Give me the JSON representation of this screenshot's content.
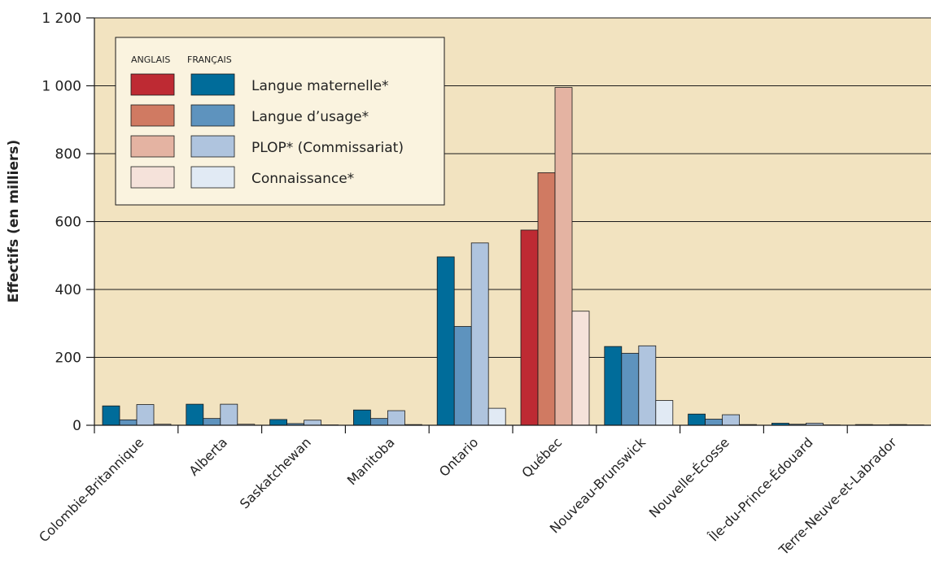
{
  "chart_data": {
    "type": "bar",
    "ylabel": "Effectifs (en milliers)",
    "ylim": [
      0,
      1200
    ],
    "yticks": [
      0,
      200,
      400,
      600,
      800,
      1000,
      1200
    ],
    "ytick_labels": [
      "0",
      "200",
      "400",
      "600",
      "800",
      "1 000",
      "1 200"
    ],
    "grid": true,
    "legend_position": "top-left",
    "legend_group_headers": [
      "ANGLAIS",
      "FRANÇAIS"
    ],
    "categories": [
      "Colombie-Britannique",
      "Alberta",
      "Saskatchewan",
      "Manitoba",
      "Ontario",
      "Québec",
      "Nouveau-Brunswick",
      "Nouvelle-Écosse",
      "Île-du-Prince-Édouard",
      "Terre-Neuve-et-Labrador"
    ],
    "measures": [
      {
        "label": "Langue maternelle*",
        "anglais_color": "#BE2A33",
        "francais_color": "#006C9A"
      },
      {
        "label": "Langue d’usage*",
        "anglais_color": "#D07A62",
        "francais_color": "#5E93BE"
      },
      {
        "label": "PLOP* (Commissariat)",
        "anglais_color": "#E4B3A2",
        "francais_color": "#AFC4DE"
      },
      {
        "label": "Connaissance*",
        "anglais_color": "#F5E2DA",
        "francais_color": "#E1EAF4"
      }
    ],
    "language_by_category": [
      "francais",
      "francais",
      "francais",
      "francais",
      "francais",
      "anglais",
      "francais",
      "francais",
      "francais",
      "francais"
    ],
    "values": [
      [
        57,
        16,
        61,
        3
      ],
      [
        62,
        20,
        62,
        3
      ],
      [
        17,
        5,
        15,
        1
      ],
      [
        45,
        20,
        43,
        2
      ],
      [
        496,
        291,
        537,
        50
      ],
      [
        575,
        744,
        995,
        336
      ],
      [
        232,
        212,
        234,
        73
      ],
      [
        33,
        18,
        31,
        2
      ],
      [
        6,
        3,
        6,
        1
      ],
      [
        2,
        1,
        2,
        1
      ]
    ],
    "colors": {
      "plot_background": "#F2E3C0",
      "grid": "#1a1a1a",
      "legend_background": "#FAF3DF",
      "bar_outline": "#1a1a1a"
    }
  }
}
